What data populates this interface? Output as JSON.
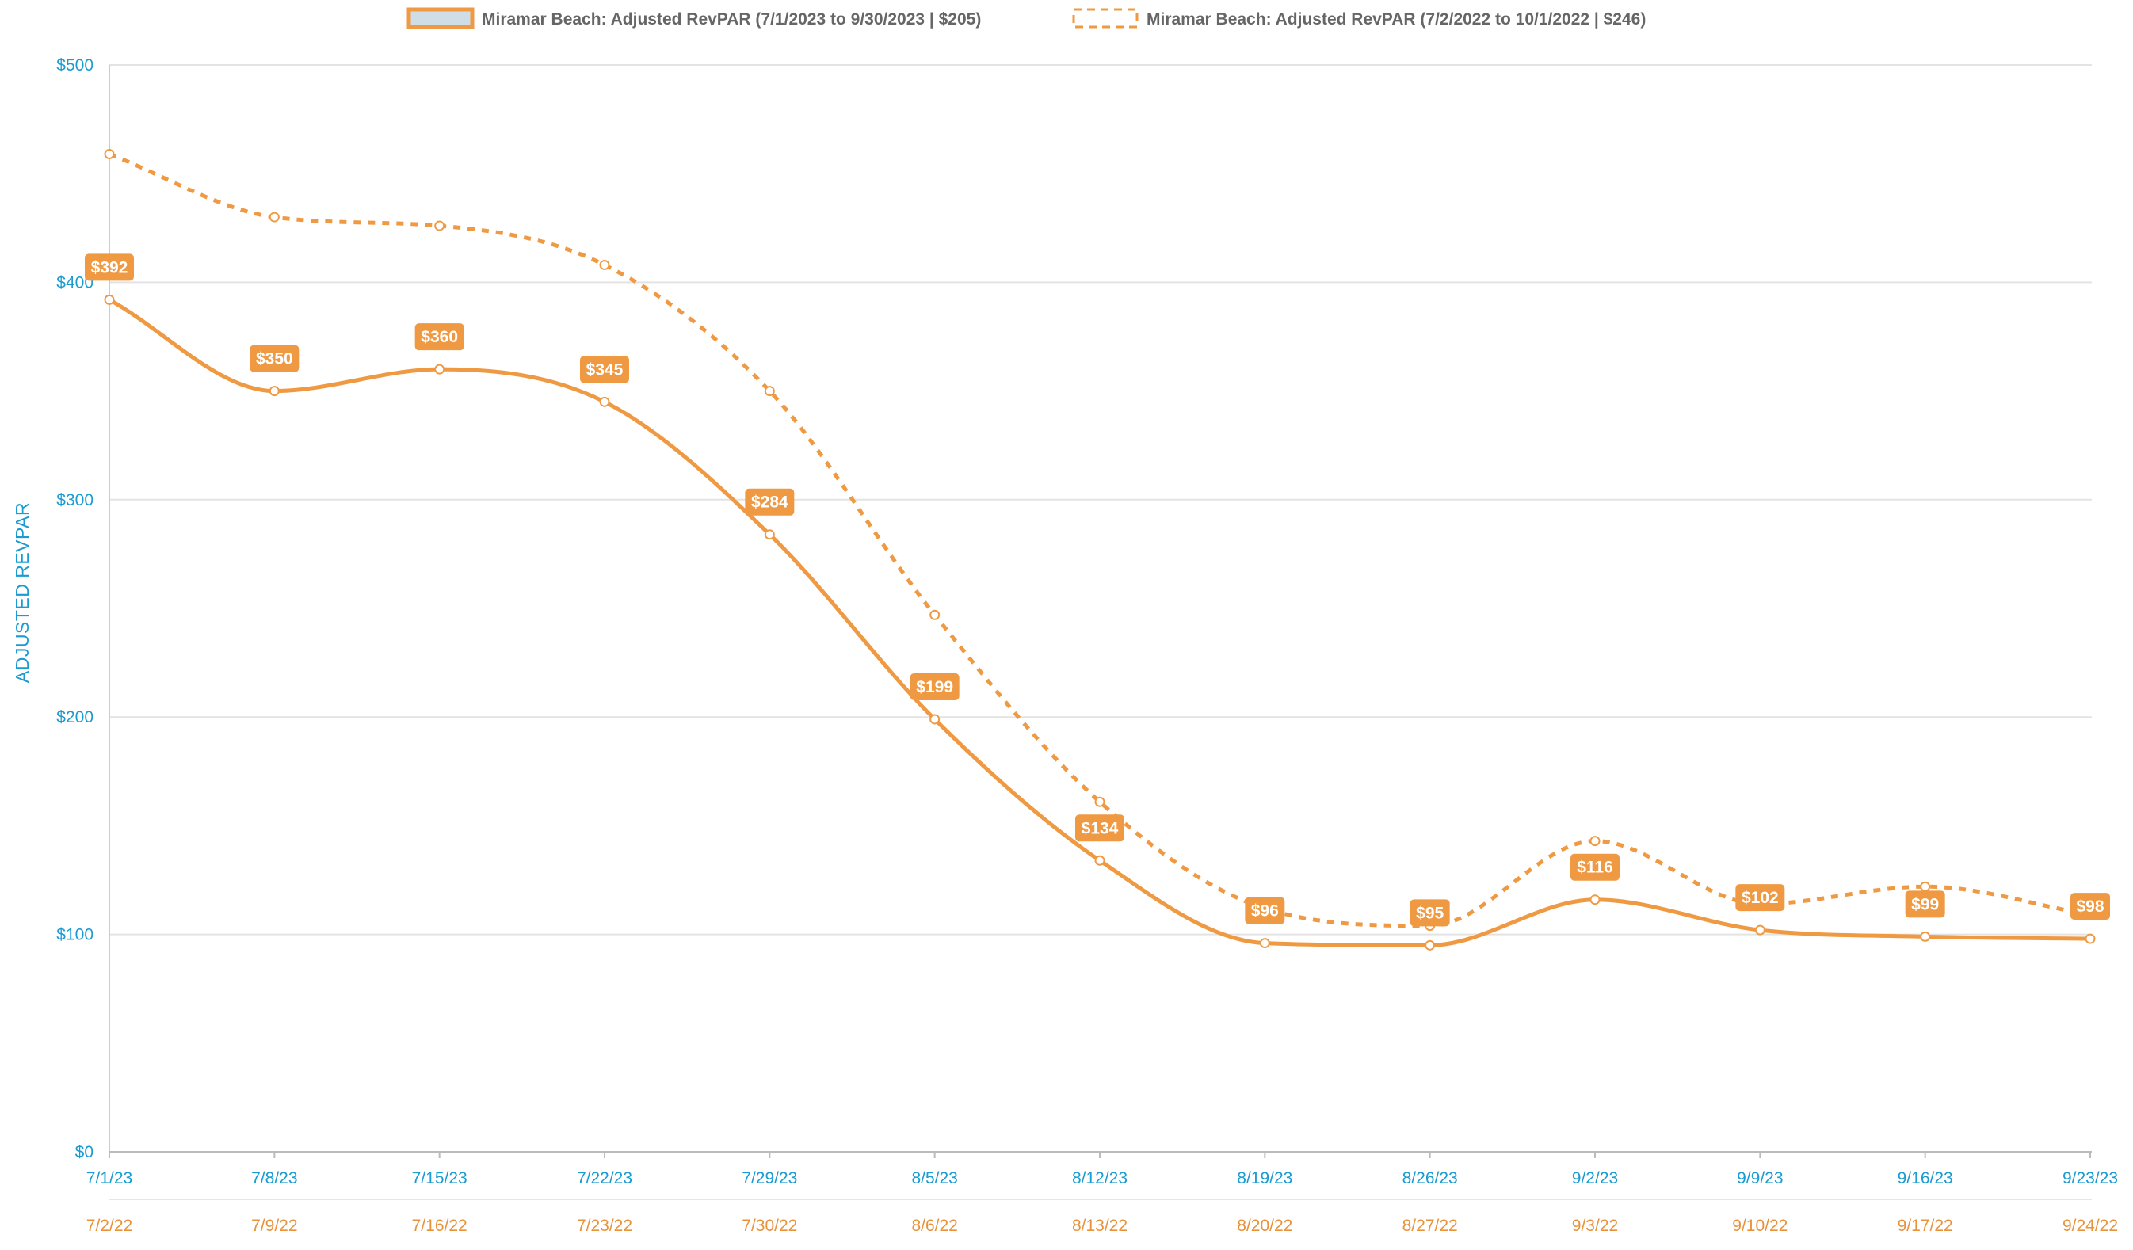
{
  "chart_data": {
    "type": "line",
    "legend": {
      "position": "top-center",
      "current_label": "Miramar Beach: Adjusted RevPAR (7/1/2023 to 9/30/2023 | $205)",
      "previous_label": "Miramar Beach: Adjusted RevPAR (7/2/2022 to 10/1/2022 | $246)"
    },
    "ylabel": "ADJUSTED REVPAR",
    "ylim": [
      0,
      500
    ],
    "yticks": [
      0,
      100,
      200,
      300,
      400,
      500
    ],
    "ytick_labels": [
      "$0",
      "$100",
      "$200",
      "$300",
      "$400",
      "$500"
    ],
    "grid": true,
    "categories": [
      "7/1/23",
      "7/8/23",
      "7/15/23",
      "7/22/23",
      "7/29/23",
      "8/5/23",
      "8/12/23",
      "8/19/23",
      "8/26/23",
      "9/2/23",
      "9/9/23",
      "9/16/23",
      "9/23/23"
    ],
    "categories_prior": [
      "7/2/22",
      "7/9/22",
      "7/16/22",
      "7/23/22",
      "7/30/22",
      "8/6/22",
      "8/13/22",
      "8/20/22",
      "8/27/22",
      "9/3/22",
      "9/10/22",
      "9/17/22",
      "9/24/22"
    ],
    "series": [
      {
        "name": "Miramar Beach: Adjusted RevPAR (7/1/2023 to 9/30/2023 | $205)",
        "style": "solid",
        "color": "#ef9a43",
        "values": [
          392,
          350,
          360,
          345,
          284,
          199,
          134,
          96,
          95,
          116,
          102,
          99,
          98
        ],
        "data_labels": [
          "$392",
          "$350",
          "$360",
          "$345",
          "$284",
          "$199",
          "$134",
          "$96",
          "$95",
          "$116",
          "$102",
          "$99",
          "$98"
        ]
      },
      {
        "name": "Miramar Beach: Adjusted RevPAR (7/2/2022 to 10/1/2022 | $246)",
        "style": "dashed",
        "color": "#ef9a43",
        "values": [
          459,
          430,
          426,
          408,
          350,
          247,
          161,
          112,
          104,
          143,
          114,
          122,
          109
        ]
      }
    ]
  }
}
